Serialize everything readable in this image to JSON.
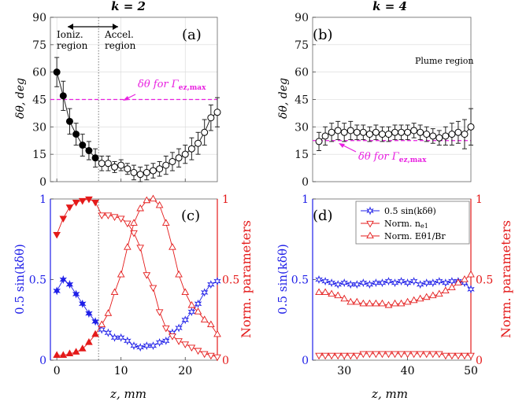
{
  "colors": {
    "magenta": "#e81fe0",
    "blue": "#1f1fe8",
    "red": "#e41a1a",
    "black": "#111111",
    "grid": "#d8d8d8"
  },
  "labels": {
    "title_a": "k = 2",
    "title_b": "k = 4",
    "ylabel_top": "δθ, deg",
    "ylabel_left_bottom": "0.5 sin(kδθ)",
    "ylabel_right_bottom": "Norm. parameters",
    "xlabel": "z, mm",
    "ioniz": "Ioniz.",
    "ioniz2": "region",
    "accel": "Accel.",
    "accel2": "region",
    "plume": "Plume region",
    "gamma_label": "δθ for Γ",
    "gamma_sub": "ez,max"
  },
  "legend": {
    "items": [
      "0.5 sin(kδθ)",
      "Norm. n",
      "Norm. Eθ1/Br"
    ],
    "n_sub": "e1"
  },
  "chart_data": [
    {
      "id": "a",
      "type": "scatter",
      "panel_label": "(a)",
      "xlim": [
        -1,
        25
      ],
      "ylim": [
        0,
        90
      ],
      "xticks": [
        0,
        10,
        20
      ],
      "yticks": [
        0,
        15,
        30,
        45,
        60,
        75,
        90
      ],
      "reference_line": 45,
      "filled": {
        "x": [
          0,
          1,
          2,
          3,
          4,
          5,
          6
        ],
        "y": [
          60,
          47,
          33,
          26,
          20,
          17,
          13
        ],
        "err": [
          8,
          8,
          7,
          6,
          6,
          5,
          5
        ]
      },
      "open": {
        "x": [
          7,
          8,
          9,
          10,
          11,
          12,
          13,
          14,
          15,
          16,
          17,
          18,
          19,
          20,
          21,
          22,
          23,
          24,
          25
        ],
        "y": [
          10,
          10,
          8,
          9,
          7,
          5,
          4,
          5,
          6,
          7,
          9,
          11,
          13,
          15,
          18,
          21,
          27,
          35,
          38
        ],
        "err": [
          4,
          4,
          3,
          3,
          3,
          4,
          4,
          4,
          4,
          4,
          5,
          5,
          5,
          5,
          6,
          6,
          7,
          7,
          8
        ]
      },
      "vline_x": 6.5
    },
    {
      "id": "b",
      "type": "scatter",
      "panel_label": "(b)",
      "xlim": [
        25,
        50
      ],
      "ylim": [
        0,
        90
      ],
      "yticks": [
        0,
        15,
        30,
        45,
        60,
        75,
        90
      ],
      "reference_line": 22.5,
      "open": {
        "x": [
          26,
          27,
          28,
          29,
          30,
          31,
          32,
          33,
          34,
          35,
          36,
          37,
          38,
          39,
          40,
          41,
          42,
          43,
          44,
          45,
          46,
          47,
          48,
          49,
          50
        ],
        "y": [
          22,
          25,
          27,
          28,
          27,
          28,
          27,
          27,
          26,
          27,
          26,
          26,
          27,
          27,
          27,
          28,
          27,
          26,
          25,
          24,
          25,
          26,
          27,
          26,
          30
        ],
        "err": [
          5,
          5,
          5,
          5,
          5,
          5,
          4,
          4,
          4,
          4,
          4,
          4,
          4,
          4,
          4,
          4,
          4,
          4,
          4,
          4,
          5,
          6,
          6,
          8,
          10
        ]
      }
    },
    {
      "id": "c",
      "type": "line",
      "panel_label": "(c)",
      "xlim": [
        -1,
        25
      ],
      "ylim": [
        0,
        1
      ],
      "xticks": [
        0,
        10,
        20
      ],
      "yticks": [
        0,
        0.5,
        1
      ],
      "ytick_labels": [
        "0",
        "0.5",
        "1"
      ],
      "vline_x": 6.5,
      "series": [
        {
          "name": "0.5 sin(kδθ)",
          "axis": "left",
          "x": [
            0,
            1,
            2,
            3,
            4,
            5,
            6,
            7,
            8,
            9,
            10,
            11,
            12,
            13,
            14,
            15,
            16,
            17,
            18,
            19,
            20,
            21,
            22,
            23,
            24,
            25
          ],
          "y": [
            0.43,
            0.5,
            0.47,
            0.41,
            0.35,
            0.29,
            0.24,
            0.19,
            0.17,
            0.14,
            0.14,
            0.12,
            0.09,
            0.08,
            0.09,
            0.09,
            0.11,
            0.12,
            0.17,
            0.2,
            0.25,
            0.3,
            0.35,
            0.42,
            0.47,
            0.49
          ]
        },
        {
          "name": "Norm. n_e1",
          "axis": "right",
          "x": [
            0,
            1,
            2,
            3,
            4,
            5,
            6,
            7,
            8,
            9,
            10,
            11,
            12,
            13,
            14,
            15,
            16,
            17,
            18,
            19,
            20,
            21,
            22,
            23,
            24,
            25
          ],
          "y": [
            0.78,
            0.88,
            0.95,
            0.98,
            0.99,
            1.0,
            0.98,
            0.9,
            0.9,
            0.89,
            0.88,
            0.85,
            0.79,
            0.7,
            0.53,
            0.45,
            0.3,
            0.2,
            0.15,
            0.12,
            0.1,
            0.08,
            0.06,
            0.04,
            0.03,
            0.02
          ]
        },
        {
          "name": "Norm. E_θ1/B_r",
          "axis": "right",
          "x": [
            0,
            1,
            2,
            3,
            4,
            5,
            6,
            7,
            8,
            9,
            10,
            11,
            12,
            13,
            14,
            15,
            16,
            17,
            18,
            19,
            20,
            21,
            22,
            23,
            24,
            25
          ],
          "y": [
            0.03,
            0.03,
            0.04,
            0.05,
            0.07,
            0.11,
            0.16,
            0.22,
            0.29,
            0.42,
            0.53,
            0.7,
            0.85,
            0.94,
            0.99,
            1.0,
            0.96,
            0.85,
            0.7,
            0.53,
            0.42,
            0.34,
            0.3,
            0.25,
            0.22,
            0.16
          ]
        }
      ]
    },
    {
      "id": "d",
      "type": "line",
      "panel_label": "(d)",
      "xlim": [
        25,
        50
      ],
      "ylim": [
        0,
        1
      ],
      "xticks": [
        30,
        40,
        50
      ],
      "yticks": [
        0,
        0.5,
        1
      ],
      "ytick_labels": [
        "0",
        "0.5",
        "1"
      ],
      "series": [
        {
          "name": "0.5 sin(kδθ)",
          "axis": "left",
          "x": [
            26,
            27,
            28,
            29,
            30,
            31,
            32,
            33,
            34,
            35,
            36,
            37,
            38,
            39,
            40,
            41,
            42,
            43,
            44,
            45,
            46,
            47,
            48,
            49,
            50
          ],
          "y": [
            0.5,
            0.49,
            0.48,
            0.47,
            0.48,
            0.47,
            0.47,
            0.48,
            0.47,
            0.48,
            0.48,
            0.49,
            0.48,
            0.49,
            0.48,
            0.49,
            0.47,
            0.48,
            0.48,
            0.49,
            0.48,
            0.49,
            0.49,
            0.48,
            0.44
          ]
        },
        {
          "name": "Norm. n_e1",
          "axis": "right",
          "x": [
            26,
            27,
            28,
            29,
            30,
            31,
            32,
            33,
            34,
            35,
            36,
            37,
            38,
            39,
            40,
            41,
            42,
            43,
            44,
            45,
            46,
            47,
            48,
            49,
            50
          ],
          "y": [
            0.03,
            0.03,
            0.03,
            0.03,
            0.03,
            0.03,
            0.03,
            0.04,
            0.04,
            0.04,
            0.04,
            0.04,
            0.04,
            0.04,
            0.04,
            0.04,
            0.04,
            0.04,
            0.04,
            0.04,
            0.03,
            0.03,
            0.03,
            0.03,
            0.03
          ]
        },
        {
          "name": "Norm. E_θ1/B_r",
          "axis": "right",
          "x": [
            26,
            27,
            28,
            29,
            30,
            31,
            32,
            33,
            34,
            35,
            36,
            37,
            38,
            39,
            40,
            41,
            42,
            43,
            44,
            45,
            46,
            47,
            48,
            49,
            50
          ],
          "y": [
            0.42,
            0.42,
            0.41,
            0.4,
            0.38,
            0.36,
            0.36,
            0.35,
            0.35,
            0.35,
            0.35,
            0.34,
            0.35,
            0.35,
            0.36,
            0.37,
            0.38,
            0.39,
            0.4,
            0.41,
            0.43,
            0.45,
            0.48,
            0.5,
            0.53
          ]
        }
      ]
    }
  ]
}
